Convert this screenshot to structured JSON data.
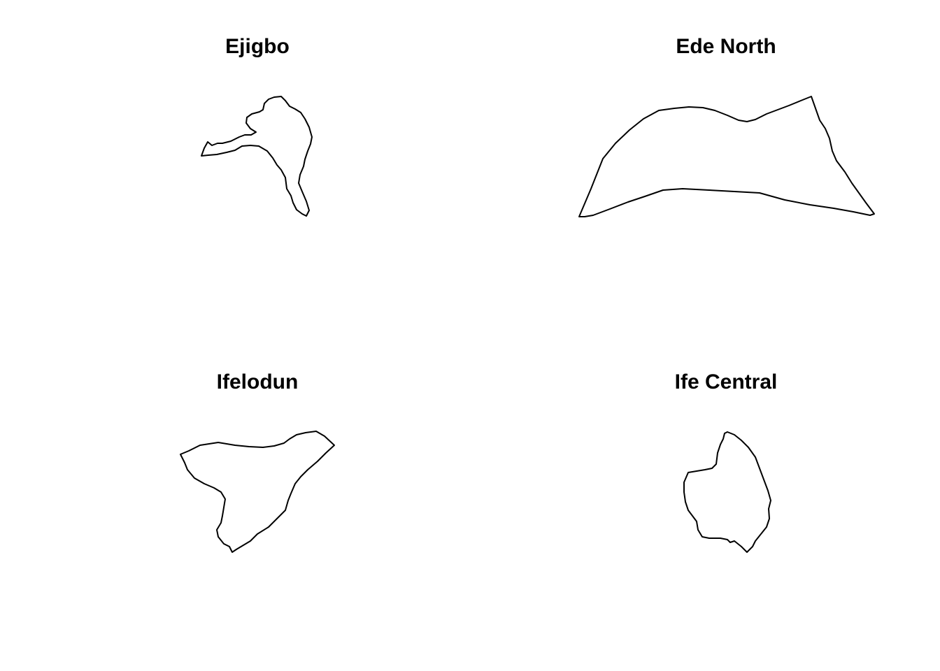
{
  "figure": {
    "panels": [
      {
        "title": "Ejigbo",
        "shape": "ejigbo-boundary"
      },
      {
        "title": "Ede North",
        "shape": "ede-north-boundary"
      },
      {
        "title": "Ifelodun",
        "shape": "ifelodun-boundary"
      },
      {
        "title": "Ife Central",
        "shape": "ife-central-boundary"
      }
    ],
    "outline_color": "#000000",
    "background_color": "#ffffff"
  }
}
